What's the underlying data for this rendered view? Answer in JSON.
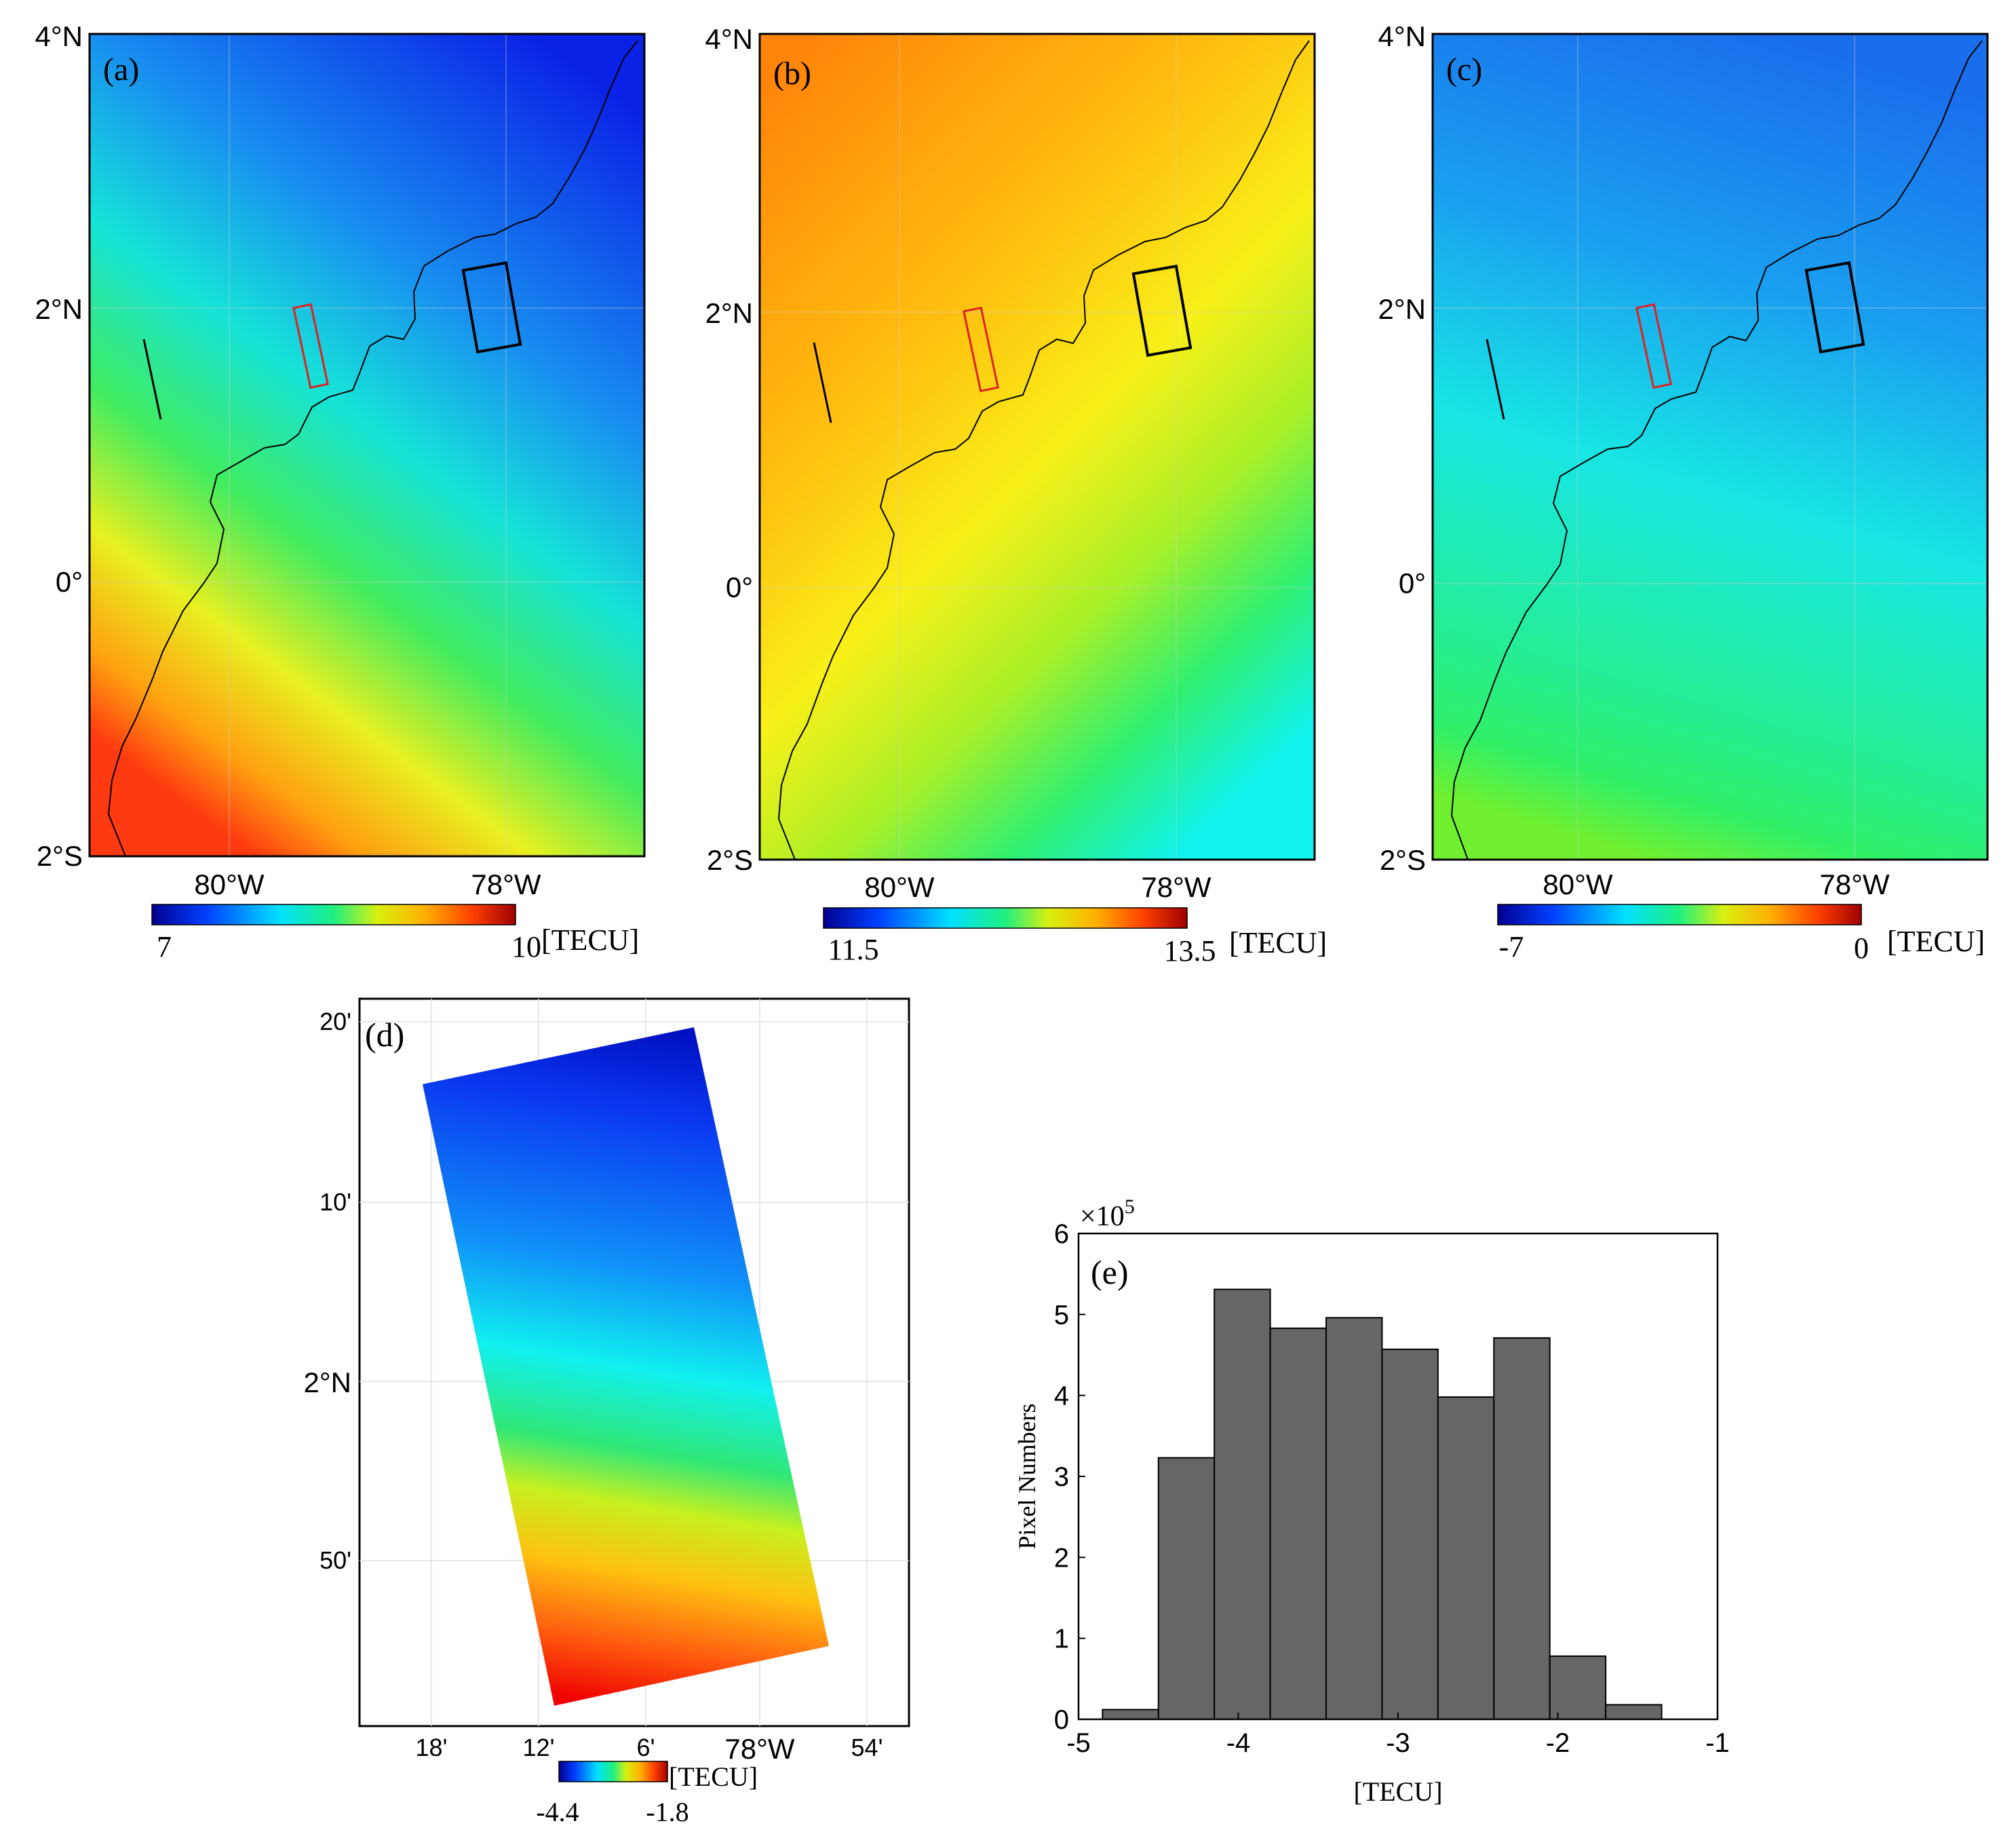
{
  "chart_data": [
    {
      "type": "heatmap",
      "panel_label": "(a)",
      "lat_ticks": [
        "4°N",
        "2°N",
        "0°",
        "2°S"
      ],
      "lon_ticks": [
        "80°W",
        "78°W"
      ],
      "colorbar": {
        "min": "7",
        "max": "10",
        "unit": "[TECU]"
      },
      "colors": {
        "top": "#0a2be8",
        "mid": "#18e0d8",
        "low": "#f4f01e",
        "corner": "#ff3210"
      }
    },
    {
      "type": "heatmap",
      "panel_label": "(b)",
      "lat_ticks": [
        "4°N",
        "2°N",
        "0°",
        "2°S"
      ],
      "lon_ticks": [
        "80°W",
        "78°W"
      ],
      "colorbar": {
        "min": "11.5",
        "max": "13.5",
        "unit": "[TECU]"
      },
      "colors": {
        "top": "#ff8c0a",
        "mid": "#ffee10",
        "low": "#2ef07a",
        "corner": "#10f4ee"
      }
    },
    {
      "type": "heatmap",
      "panel_label": "(c)",
      "lat_ticks": [
        "4°N",
        "2°N",
        "0°",
        "2°S"
      ],
      "lon_ticks": [
        "80°W",
        "78°W"
      ],
      "colorbar": {
        "min": "-7",
        "max": "0",
        "unit": "[TECU]"
      },
      "colors": {
        "top": "#1a78ee",
        "mid": "#1ee8e6",
        "low": "#2ef07c",
        "corner": "#8ef02a"
      }
    },
    {
      "type": "heatmap",
      "panel_label": "(d)",
      "lat_ticks": [
        "20'",
        "10'",
        "2°N",
        "50'"
      ],
      "lon_ticks": [
        "18'",
        "12'",
        "6'",
        "78°W",
        "54'"
      ],
      "colorbar": {
        "min": "-4.4",
        "max": "-1.8",
        "unit": "[TECU]"
      }
    },
    {
      "type": "bar",
      "panel_label": "(e)",
      "xlabel": "[TECU]",
      "ylabel": "Pixel Numbers",
      "y_multiplier": "×10",
      "y_multiplier_exp": "5",
      "xlim": [
        -5,
        -1
      ],
      "ylim": [
        0,
        6
      ],
      "x_ticks": [
        "-5",
        "-4",
        "-3",
        "-2",
        "-1"
      ],
      "y_ticks": [
        "0",
        "1",
        "2",
        "3",
        "4",
        "5",
        "6"
      ],
      "bin_edges": [
        -4.85,
        -4.5,
        -4.15,
        -3.8,
        -3.45,
        -3.1,
        -2.75,
        -2.4,
        -2.05,
        -1.7,
        -1.35
      ],
      "values": [
        0.12,
        3.23,
        5.31,
        4.83,
        4.96,
        4.57,
        3.98,
        4.71,
        0.78,
        0.18
      ],
      "bar_color": "#666666"
    }
  ]
}
